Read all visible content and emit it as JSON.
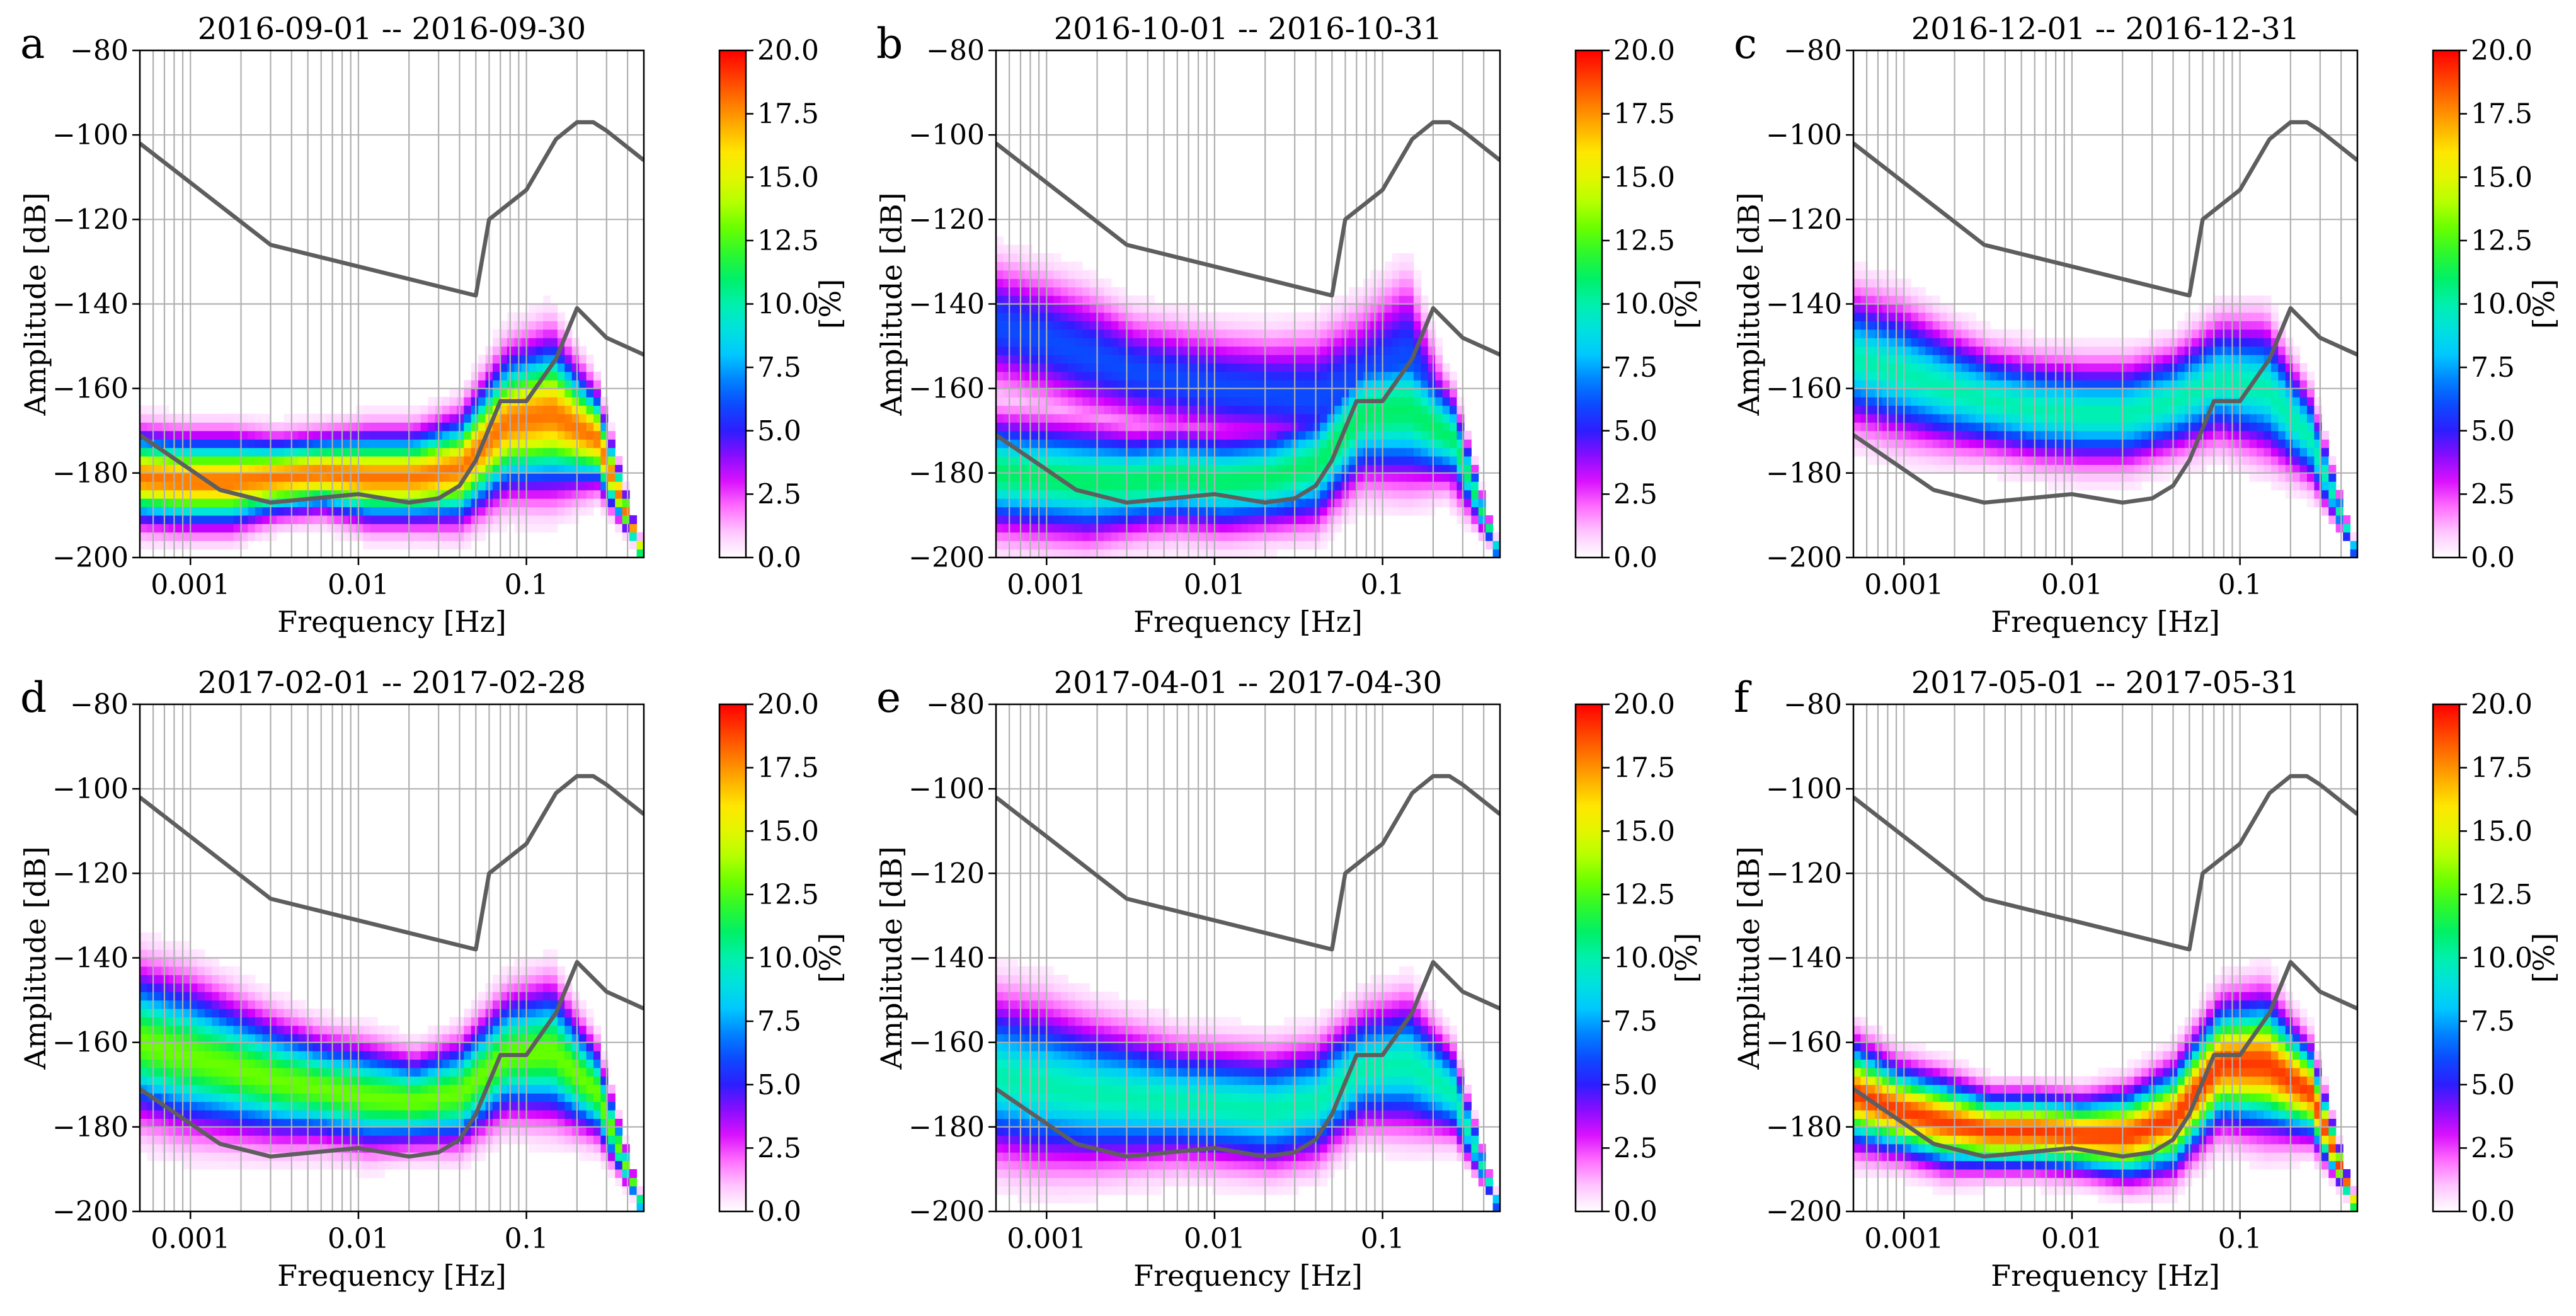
{
  "chart_data": [
    {
      "type": "heatmap",
      "letter": "a",
      "title": "2016-09-01 -- 2016-09-30",
      "xlabel": "Frequency [Hz]",
      "ylabel": "Amplitude [dB]",
      "xscale": "log",
      "xlim": [
        0.0005,
        0.5
      ],
      "ylim": [
        -200,
        -80
      ],
      "xticks": [
        0.001,
        0.01,
        0.1
      ],
      "xtick_labels": [
        "0.001",
        "0.01",
        "0.1"
      ],
      "yticks": [
        -200,
        -180,
        -160,
        -140,
        -120,
        -100,
        -80
      ],
      "ytick_labels": [
        "−200",
        "−180",
        "−160",
        "−140",
        "−120",
        "−100",
        "−80"
      ],
      "colorbar": {
        "label": "[%]",
        "min": 0,
        "max": 20,
        "ticks": [
          "0.0",
          "2.5",
          "5.0",
          "7.5",
          "10.0",
          "12.5",
          "15.0",
          "17.5",
          "20.0"
        ]
      },
      "mode_db": [
        -181,
        -182,
        -182,
        -181,
        -180,
        -181,
        -181,
        -179,
        -168,
        -166,
        -172,
        -200
      ],
      "spread_db": [
        6,
        6,
        6,
        5,
        5,
        6,
        6,
        7,
        9,
        10,
        6,
        0
      ],
      "peak_pct": 18,
      "grid": true
    },
    {
      "type": "heatmap",
      "letter": "b",
      "title": "2016-10-01 -- 2016-10-31",
      "xlabel": "Frequency [Hz]",
      "ylabel": "Amplitude [dB]",
      "xscale": "log",
      "xlim": [
        0.0005,
        0.5
      ],
      "ylim": [
        -200,
        -80
      ],
      "xticks": [
        0.001,
        0.01,
        0.1
      ],
      "xtick_labels": [
        "0.001",
        "0.01",
        "0.1"
      ],
      "yticks": [
        -200,
        -180,
        -160,
        -140,
        -120,
        -100,
        -80
      ],
      "ytick_labels": [
        "−200",
        "−180",
        "−160",
        "−140",
        "−120",
        "−100",
        "−80"
      ],
      "colorbar": {
        "label": "[%]",
        "min": 0,
        "max": 20,
        "ticks": [
          "0.0",
          "2.5",
          "5.0",
          "7.5",
          "10.0",
          "12.5",
          "15.0",
          "17.5",
          "20.0"
        ]
      },
      "mode_db": [
        -180,
        -181,
        -182,
        -182,
        -181,
        -182,
        -181,
        -178,
        -166,
        -165,
        -172,
        -200
      ],
      "mode2_db": [
        -145,
        -148,
        -152,
        -156,
        -158,
        -160,
        -161,
        -162,
        -158,
        -152,
        -175,
        -200
      ],
      "spread_db": [
        8,
        8,
        8,
        7,
        7,
        7,
        7,
        8,
        9,
        10,
        6,
        0
      ],
      "peak_pct": 11,
      "grid": true
    },
    {
      "type": "heatmap",
      "letter": "c",
      "title": "2016-12-01 -- 2016-12-31",
      "xlabel": "Frequency [Hz]",
      "ylabel": "Amplitude [dB]",
      "xscale": "log",
      "xlim": [
        0.0005,
        0.5
      ],
      "ylim": [
        -200,
        -80
      ],
      "xticks": [
        0.001,
        0.01,
        0.1
      ],
      "xtick_labels": [
        "0.001",
        "0.01",
        "0.1"
      ],
      "yticks": [
        -200,
        -180,
        -160,
        -140,
        -120,
        -100,
        -80
      ],
      "ytick_labels": [
        "−200",
        "−180",
        "−160",
        "−140",
        "−120",
        "−100",
        "−80"
      ],
      "colorbar": {
        "label": "[%]",
        "min": 0,
        "max": 20,
        "ticks": [
          "0.0",
          "2.5",
          "5.0",
          "7.5",
          "10.0",
          "12.5",
          "15.0",
          "17.5",
          "20.0"
        ]
      },
      "mode_db": [
        -153,
        -156,
        -160,
        -163,
        -165,
        -166,
        -166,
        -163,
        -158,
        -160,
        -172,
        -200
      ],
      "spread_db": [
        9,
        9,
        8,
        7,
        7,
        7,
        7,
        7,
        8,
        9,
        6,
        0
      ],
      "peak_pct": 10,
      "grid": true
    },
    {
      "type": "heatmap",
      "letter": "d",
      "title": "2017-02-01 -- 2017-02-28",
      "xlabel": "Frequency [Hz]",
      "ylabel": "Amplitude [dB]",
      "xscale": "log",
      "xlim": [
        0.0005,
        0.5
      ],
      "ylim": [
        -200,
        -80
      ],
      "xticks": [
        0.001,
        0.01,
        0.1
      ],
      "xtick_labels": [
        "0.001",
        "0.01",
        "0.1"
      ],
      "yticks": [
        -200,
        -180,
        -160,
        -140,
        -120,
        -100,
        -80
      ],
      "ytick_labels": [
        "−200",
        "−180",
        "−160",
        "−140",
        "−120",
        "−100",
        "−80"
      ],
      "colorbar": {
        "label": "[%]",
        "min": 0,
        "max": 20,
        "ticks": [
          "0.0",
          "2.5",
          "5.0",
          "7.5",
          "10.0",
          "12.5",
          "15.0",
          "17.5",
          "20.0"
        ]
      },
      "mode_db": [
        -160,
        -163,
        -166,
        -169,
        -171,
        -173,
        -174,
        -172,
        -163,
        -162,
        -172,
        -200
      ],
      "spread_db": [
        10,
        10,
        9,
        8,
        7,
        7,
        6,
        7,
        8,
        9,
        6,
        0
      ],
      "peak_pct": 13,
      "grid": true
    },
    {
      "type": "heatmap",
      "letter": "e",
      "title": "2017-04-01 -- 2017-04-30",
      "xlabel": "Frequency [Hz]",
      "ylabel": "Amplitude [dB]",
      "xscale": "log",
      "xlim": [
        0.0005,
        0.5
      ],
      "ylim": [
        -200,
        -80
      ],
      "xticks": [
        0.001,
        0.01,
        0.1
      ],
      "xtick_labels": [
        "0.001",
        "0.01",
        "0.1"
      ],
      "yticks": [
        -200,
        -180,
        -160,
        -140,
        -120,
        -100,
        -80
      ],
      "ytick_labels": [
        "−200",
        "−180",
        "−160",
        "−140",
        "−120",
        "−100",
        "−80"
      ],
      "colorbar": {
        "label": "[%]",
        "min": 0,
        "max": 20,
        "ticks": [
          "0.0",
          "2.5",
          "5.0",
          "7.5",
          "10.0",
          "12.5",
          "15.0",
          "17.5",
          "20.0"
        ]
      },
      "mode_db": [
        -168,
        -170,
        -172,
        -173,
        -174,
        -175,
        -176,
        -174,
        -166,
        -165,
        -172,
        -200
      ],
      "spread_db": [
        11,
        11,
        10,
        9,
        8,
        8,
        8,
        8,
        8,
        9,
        6,
        0
      ],
      "peak_pct": 10,
      "grid": true
    },
    {
      "type": "heatmap",
      "letter": "f",
      "title": "2017-05-01 -- 2017-05-31",
      "xlabel": "Frequency [Hz]",
      "ylabel": "Amplitude [dB]",
      "xscale": "log",
      "xlim": [
        0.0005,
        0.5
      ],
      "ylim": [
        -200,
        -80
      ],
      "xticks": [
        0.001,
        0.01,
        0.1
      ],
      "xtick_labels": [
        "0.001",
        "0.01",
        "0.1"
      ],
      "yticks": [
        -200,
        -180,
        -160,
        -140,
        -120,
        -100,
        -80
      ],
      "ytick_labels": [
        "−200",
        "−180",
        "−160",
        "−140",
        "−120",
        "−100",
        "−80"
      ],
      "colorbar": {
        "label": "[%]",
        "min": 0,
        "max": 20,
        "ticks": [
          "0.0",
          "2.5",
          "5.0",
          "7.5",
          "10.0",
          "12.5",
          "15.0",
          "17.5",
          "20.0"
        ]
      },
      "mode_db": [
        -172,
        -176,
        -179,
        -181,
        -181,
        -182,
        -182,
        -178,
        -165,
        -165,
        -172,
        -200
      ],
      "spread_db": [
        7,
        6,
        6,
        5,
        5,
        5,
        6,
        7,
        8,
        9,
        6,
        0
      ],
      "peak_pct": 19,
      "grid": true
    }
  ],
  "reference_curves": {
    "high_noise_model": {
      "freq_hz": [
        0.0005,
        0.003,
        0.05,
        0.06,
        0.1,
        0.15,
        0.2,
        0.25,
        0.3,
        0.5
      ],
      "db": [
        -102,
        -126,
        -138,
        -120,
        -113,
        -101,
        -97,
        -97,
        -99,
        -106
      ]
    },
    "low_noise_model": {
      "freq_hz": [
        0.0005,
        0.0015,
        0.003,
        0.01,
        0.02,
        0.03,
        0.04,
        0.05,
        0.07,
        0.1,
        0.15,
        0.2,
        0.3,
        0.5
      ],
      "db": [
        -171,
        -184,
        -187,
        -185,
        -187,
        -186,
        -183,
        -177,
        -163,
        -163,
        -153,
        -141,
        -148,
        -152
      ]
    }
  }
}
